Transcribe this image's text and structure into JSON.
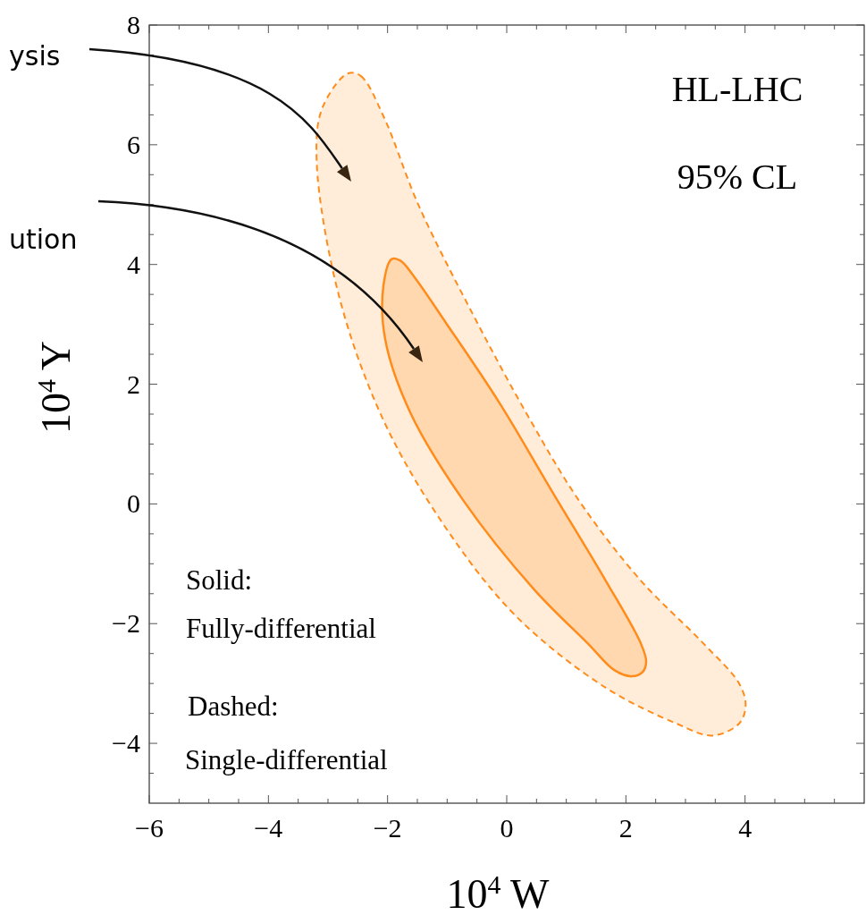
{
  "chart_data": {
    "type": "area",
    "xlabel": "10$^{4}$ W",
    "ylabel": "10$^{4}$ Y",
    "xlim": [
      -6,
      6
    ],
    "ylim": [
      -5,
      8
    ],
    "xticks": [
      -6,
      {
        "value": -5.5,
        "label": null
      },
      {
        "value": -5,
        "label": null
      },
      {
        "value": -4.5,
        "label": null
      },
      {
        "value": -4,
        "label": "−4"
      },
      {
        "value": -3.5,
        "label": null
      },
      {
        "value": -3,
        "label": null
      },
      {
        "value": -2.5,
        "label": null
      },
      {
        "value": -2,
        "label": "−2"
      },
      {
        "value": -1.5,
        "label": null
      },
      {
        "value": -1,
        "label": null
      },
      {
        "value": -0.5,
        "label": null
      },
      0,
      {
        "value": 0.5,
        "label": null
      },
      {
        "value": 1,
        "label": null
      },
      {
        "value": 1.5,
        "label": null
      },
      2,
      {
        "value": 2.5,
        "label": null
      },
      {
        "value": 3,
        "label": null
      },
      {
        "value": 3.5,
        "label": null
      },
      4,
      {
        "value": 4.5,
        "label": null
      },
      {
        "value": 5,
        "label": null
      },
      {
        "value": 5.5,
        "label": null
      }
    ],
    "yticks": [
      {
        "value": -4.5,
        "label": null
      },
      {
        "value": -4,
        "label": "−4"
      },
      {
        "value": -3.5,
        "label": null
      },
      {
        "value": -3,
        "label": null
      },
      {
        "value": -2.5,
        "label": null
      },
      {
        "value": -2,
        "label": "−2"
      },
      {
        "value": -1.5,
        "label": null
      },
      {
        "value": -1,
        "label": null
      },
      {
        "value": -0.5,
        "label": null
      },
      0,
      {
        "value": 0.5,
        "label": null
      },
      {
        "value": 1,
        "label": null
      },
      {
        "value": 1.5,
        "label": null
      },
      2,
      {
        "value": 2.5,
        "label": null
      },
      {
        "value": 3,
        "label": null
      },
      {
        "value": 3.5,
        "label": null
      },
      4,
      {
        "value": 4.5,
        "label": null
      },
      {
        "value": 5,
        "label": null
      },
      {
        "value": 5.5,
        "label": null
      },
      6,
      {
        "value": 6.5,
        "label": null
      },
      {
        "value": 7,
        "label": null
      },
      {
        "value": 7.5,
        "label": null
      },
      8
    ],
    "marker": "none",
    "series": [
      {
        "color": "#ff8c1a",
        "line_style": "dashed",
        "x": [
          -2.67,
          -2.45,
          -2.07,
          -1.48,
          -0.58,
          0.31,
          1.21,
          2.25,
          3.3,
          3.9,
          4.01,
          3.9,
          3.45,
          2.85,
          1.66,
          0.16,
          -1.03,
          -2.07,
          -2.82,
          -3.19,
          -3.1
        ],
        "values": [
          7.19,
          7.15,
          6.48,
          4.99,
          3.19,
          1.55,
          0.06,
          -1.28,
          -2.33,
          -3.0,
          -3.37,
          -3.67,
          -3.87,
          -3.67,
          -3.07,
          -1.88,
          -0.39,
          1.4,
          3.49,
          5.73,
          6.6
        ]
      },
      {
        "color": "#ff8c1a",
        "line_style": "solid",
        "x": [
          -1.93,
          -1.78,
          -1.55,
          -1.03,
          -0.13,
          0.76,
          1.66,
          2.25,
          2.34,
          2.28,
          2.1,
          1.81,
          1.36,
          0.46,
          -0.73,
          -1.63,
          -2.04,
          -2.07
        ],
        "values": [
          4.09,
          4.06,
          3.79,
          3.04,
          1.7,
          0.21,
          -1.28,
          -2.33,
          -2.63,
          -2.81,
          -2.88,
          -2.78,
          -2.33,
          -1.43,
          0.06,
          1.55,
          2.75,
          3.64
        ]
      }
    ],
    "annotations": [
      "ysis",
      "ution",
      "HL-LHC",
      "95% CL",
      "Solid:",
      "Fully-differential",
      "Dashed:",
      "Single-differential"
    ]
  }
}
